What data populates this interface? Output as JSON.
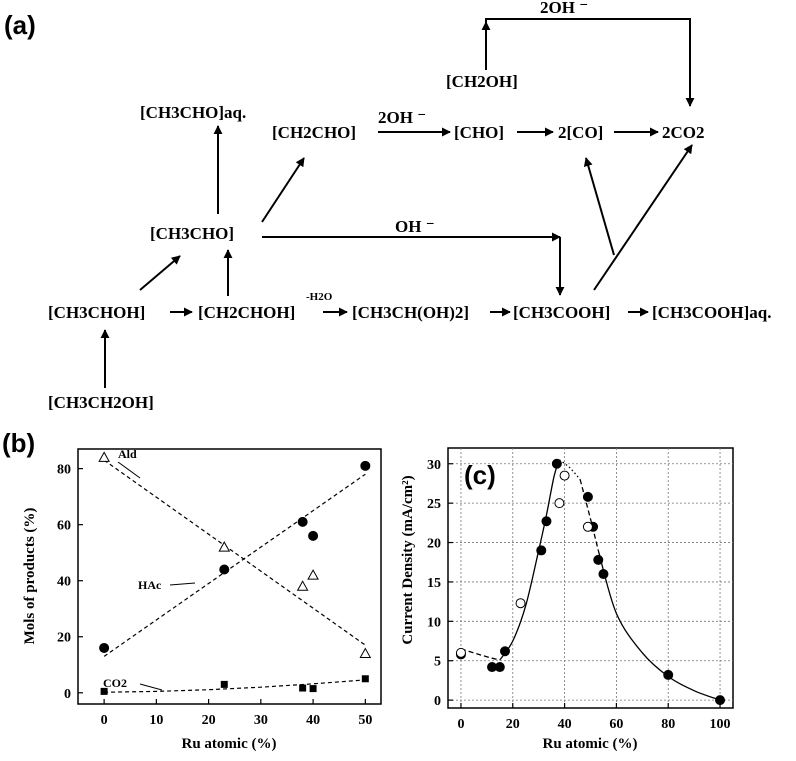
{
  "panel_labels": {
    "a": "(a)",
    "b": "(b)",
    "c": "(c)"
  },
  "scheme": {
    "nodes": {
      "ch3ch2oh": "[CH3CH2OH]",
      "ch3choh": "[CH3CHOH]",
      "ch2chohr": "[CH2CHOH]",
      "ch3cho": "[CH3CHO]",
      "ch3cho_aq": "[CH3CHO]aq.",
      "ch2cho": "[CH2CHO]",
      "ch3ch_oh2": "[CH3CH(OH)2]",
      "ch3cooh": "[CH3COOH]",
      "ch3cooh_aq": "[CH3COOH]aq.",
      "cho": "[CHO]",
      "co": "2[CO]",
      "co2": "2CO2",
      "ch2oh": "[CH2OH]"
    },
    "labels": {
      "two_oh_top": "2OH ⁻",
      "two_oh_mid": "2OH ⁻",
      "oh": "OH ⁻",
      "minus_h2o": "-H2O"
    }
  },
  "chart_data": [
    {
      "id": "b",
      "type": "scatter",
      "xlabel": "Ru atomic (%)",
      "ylabel": "Mols of products (%)",
      "xlim": [
        -5,
        53
      ],
      "ylim": [
        -4,
        87
      ],
      "xticks": [
        0,
        10,
        20,
        30,
        40,
        50
      ],
      "yticks": [
        0,
        20,
        40,
        60,
        80
      ],
      "grid": false,
      "series": [
        {
          "name": "Ald",
          "marker": "open-triangle",
          "x": [
            0,
            23,
            38,
            40,
            50
          ],
          "y": [
            84,
            52,
            38,
            42,
            14
          ],
          "fit": {
            "x": [
              0,
              50
            ],
            "y": [
              83,
              17
            ]
          }
        },
        {
          "name": "HAc",
          "marker": "filled-circle",
          "x": [
            0,
            23,
            38,
            40,
            50
          ],
          "y": [
            16,
            44,
            61,
            56,
            81
          ],
          "fit": {
            "x": [
              0,
              50
            ],
            "y": [
              13,
              78
            ]
          }
        },
        {
          "name": "CO2",
          "marker": "filled-square",
          "x": [
            0,
            23,
            38,
            40,
            50
          ],
          "y": [
            0.5,
            3,
            1.7,
            1.5,
            5
          ],
          "fit": {
            "x": [
              0,
              10,
              20,
              30,
              40,
              50
            ],
            "y": [
              0.2,
              0.5,
              1.1,
              2,
              3.2,
              4.6
            ]
          }
        }
      ]
    },
    {
      "id": "c",
      "type": "scatter",
      "xlabel": "Ru atomic (%)",
      "ylabel": "Current Density (mA/cm²)",
      "xlim": [
        -5,
        105
      ],
      "ylim": [
        -1,
        32
      ],
      "xticks": [
        0,
        20,
        40,
        60,
        80,
        100
      ],
      "yticks": [
        0,
        5,
        10,
        15,
        20,
        25,
        30
      ],
      "grid": true,
      "series": [
        {
          "marker": "filled-circle",
          "x": [
            0,
            12,
            15,
            17,
            31,
            33,
            37,
            49,
            51,
            53,
            55,
            80,
            100
          ],
          "y": [
            5.8,
            4.2,
            4.2,
            6.2,
            19,
            22.7,
            30,
            25.8,
            22,
            17.8,
            16,
            3.2,
            0
          ]
        },
        {
          "marker": "open-circle",
          "x": [
            0,
            23,
            38,
            40,
            49
          ],
          "y": [
            6,
            12.3,
            25,
            28.5,
            22
          ]
        }
      ],
      "curves": [
        {
          "style": "dashed",
          "x": [
            0,
            10,
            15
          ],
          "y": [
            6.5,
            5.5,
            5.1
          ]
        },
        {
          "style": "solid",
          "x": [
            15,
            20,
            25,
            30,
            33,
            36,
            38
          ],
          "y": [
            5.1,
            7.5,
            12,
            19,
            23.5,
            28.5,
            30.5
          ]
        },
        {
          "style": "dotted",
          "x": [
            38,
            42,
            46
          ],
          "y": [
            30.5,
            29.5,
            28
          ]
        },
        {
          "style": "dashed",
          "x": [
            46,
            50,
            53
          ],
          "y": [
            28,
            23,
            19
          ]
        },
        {
          "style": "solid",
          "x": [
            53,
            60,
            70,
            80,
            90,
            100
          ],
          "y": [
            19,
            11,
            6,
            3,
            1.2,
            0
          ]
        }
      ]
    }
  ]
}
